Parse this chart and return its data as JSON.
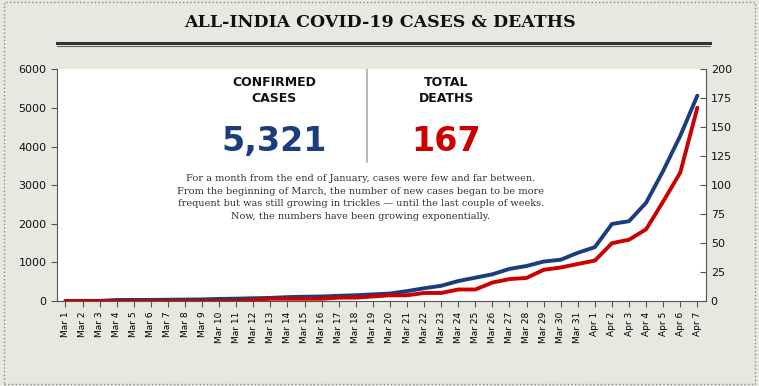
{
  "title": "ALL-INDIA COVID-19 CASES & DEATHS",
  "confirmed_label": "CONFIRMED\nCASES",
  "confirmed_value": "5,321",
  "deaths_label": "TOTAL\nDEATHS",
  "deaths_value": "167",
  "annotation_text": "For a month from the end of January, cases were few and far between.\nFrom the beginning of March, the number of new cases began to be more\nfrequent but was still growing in trickles — until the last couple of weeks.\nNow, the numbers have been growing exponentially.",
  "dates": [
    "Mar 1",
    "Mar 2",
    "Mar 3",
    "Mar 4",
    "Mar 5",
    "Mar 6",
    "Mar 7",
    "Mar 8",
    "Mar 9",
    "Mar 10",
    "Mar 11",
    "Mar 12",
    "Mar 13",
    "Mar 14",
    "Mar 15",
    "Mar 16",
    "Mar 17",
    "Mar 18",
    "Mar 19",
    "Mar 20",
    "Mar 21",
    "Mar 22",
    "Mar 23",
    "Mar 24",
    "Mar 25",
    "Mar 26",
    "Mar 27",
    "Mar 28",
    "Mar 29",
    "Mar 30",
    "Mar 31",
    "Apr 1",
    "Apr 2",
    "Apr 3",
    "Apr 4",
    "Apr 5",
    "Apr 6",
    "Apr 7"
  ],
  "cases": [
    3,
    5,
    6,
    28,
    30,
    31,
    34,
    39,
    43,
    56,
    62,
    73,
    82,
    102,
    113,
    119,
    137,
    151,
    173,
    195,
    258,
    332,
    396,
    519,
    606,
    694,
    834,
    909,
    1024,
    1071,
    1251,
    1397,
    1998,
    2069,
    2547,
    3374,
    4281,
    5321
  ],
  "deaths": [
    0,
    0,
    0,
    0,
    0,
    0,
    0,
    0,
    0,
    0,
    0,
    1,
    2,
    2,
    2,
    2,
    3,
    3,
    4,
    5,
    5,
    7,
    7,
    10,
    10,
    16,
    19,
    20,
    27,
    29,
    32,
    35,
    50,
    53,
    62,
    86,
    111,
    167
  ],
  "cases_color": "#1b3d7d",
  "deaths_color": "#cc0000",
  "confirmed_color": "#1b3d7d",
  "deaths_num_color": "#cc0000",
  "ylim_left": [
    0,
    6000
  ],
  "ylim_right": [
    0,
    200
  ],
  "yticks_left": [
    0,
    1000,
    2000,
    3000,
    4000,
    5000,
    6000
  ],
  "yticks_right": [
    0,
    25,
    50,
    75,
    100,
    125,
    150,
    175,
    200
  ],
  "bg_color": "#ffffff",
  "outer_bg": "#e8e8e0",
  "line1_color": "#333333",
  "line2_color": "#666666",
  "spine_color": "#555555",
  "tick_color": "#555555",
  "text_color": "#111111",
  "annot_color": "#333333",
  "divider_color": "#aaaaaa"
}
